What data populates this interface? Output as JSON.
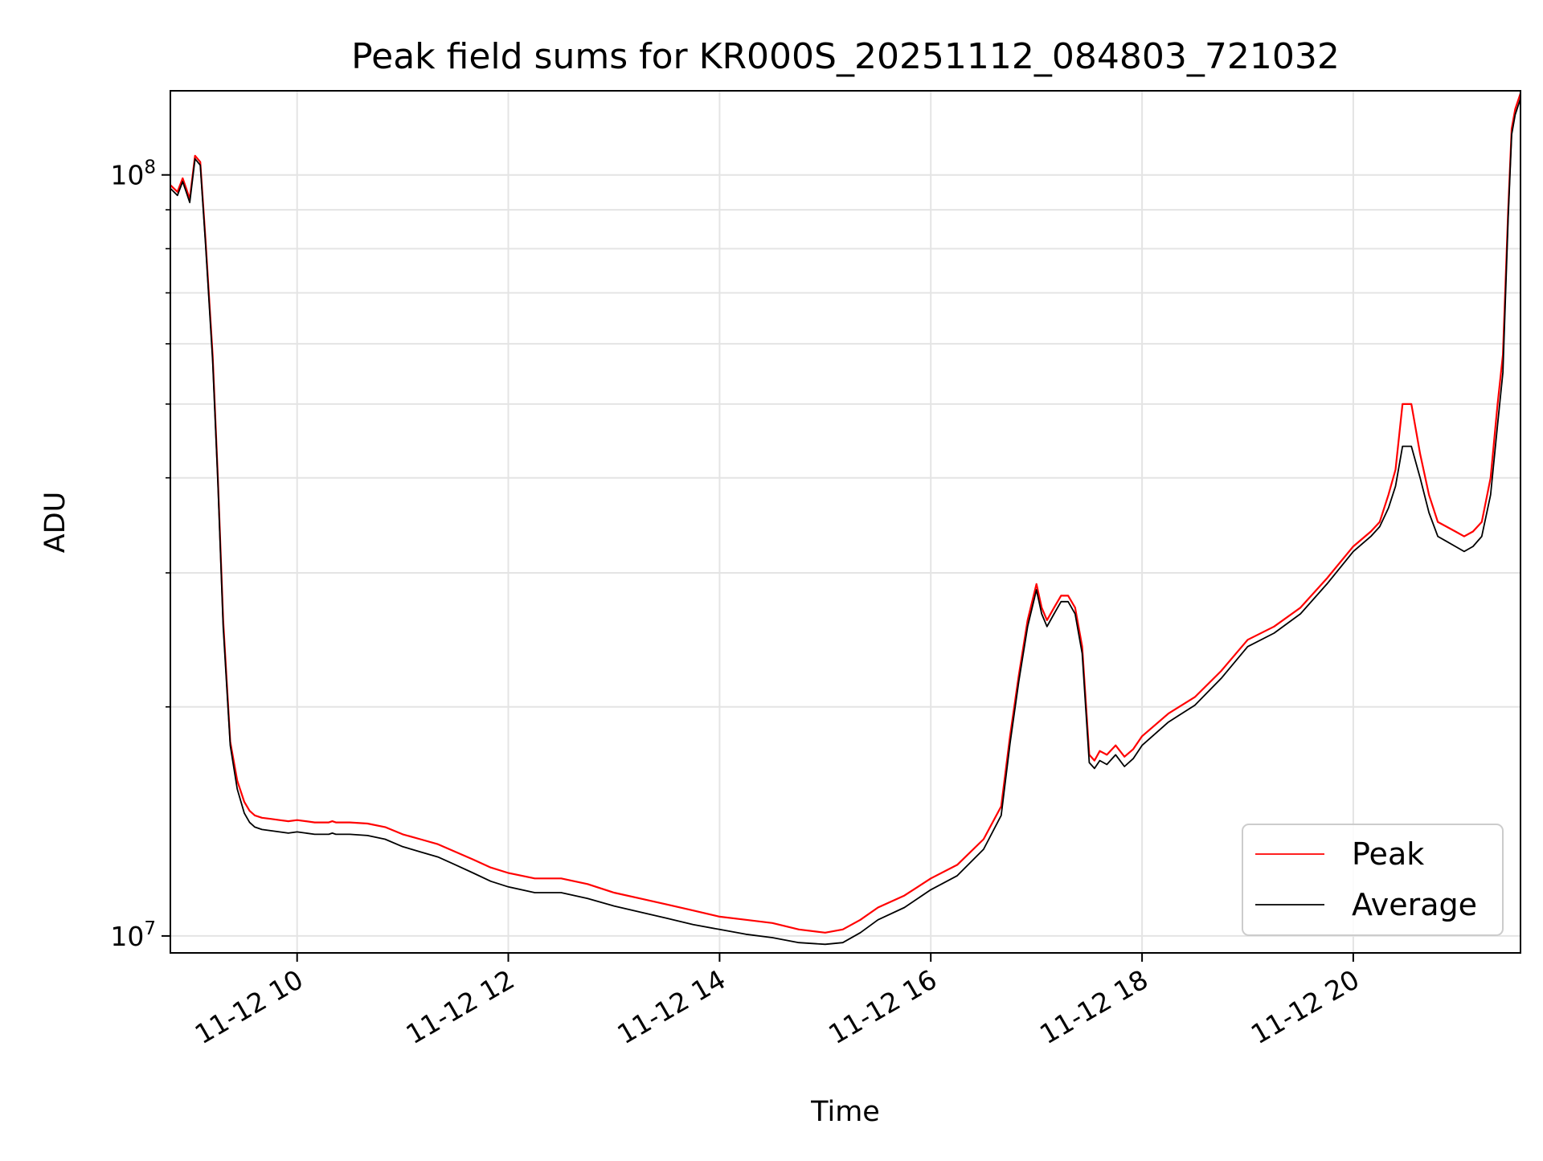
{
  "chart_data": {
    "type": "line",
    "title": "Peak field sums for KR000S_20251112_084803_721032",
    "xlabel": "Time",
    "ylabel": "ADU",
    "x_axis": {
      "type": "time",
      "range": [
        "2025-11-12 08:48",
        "2025-11-12 21:35"
      ],
      "ticks": [
        "2025-11-12 10:00",
        "2025-11-12 12:00",
        "2025-11-12 14:00",
        "2025-11-12 16:00",
        "2025-11-12 18:00",
        "2025-11-12 20:00"
      ],
      "tick_labels": [
        "11-12 10",
        "11-12 12",
        "11-12 14",
        "11-12 16",
        "11-12 18",
        "11-12 20"
      ],
      "tick_label_rotation_deg": 30
    },
    "y_axis": {
      "scale": "log",
      "range": [
        9500000,
        129000000
      ],
      "major_ticks": [
        10000000,
        100000000
      ],
      "major_tick_labels": [
        {
          "base": "10",
          "exp": "7"
        },
        {
          "base": "10",
          "exp": "8"
        }
      ],
      "minor_ticks": [
        20000000,
        30000000,
        40000000,
        50000000,
        60000000,
        70000000,
        80000000,
        90000000
      ]
    },
    "grid": true,
    "legend": {
      "placement": "lower-right",
      "entries": [
        "Peak",
        "Average"
      ]
    },
    "series": [
      {
        "name": "Peak",
        "color": "#ff0000",
        "x": [
          "08:48",
          "08:52",
          "08:55",
          "08:57",
          "08:59",
          "09:02",
          "09:05",
          "09:08",
          "09:12",
          "09:15",
          "09:18",
          "09:22",
          "09:26",
          "09:30",
          "09:33",
          "09:36",
          "09:40",
          "09:45",
          "09:50",
          "09:55",
          "10:00",
          "10:05",
          "10:10",
          "10:15",
          "10:18",
          "10:20",
          "10:22",
          "10:30",
          "10:40",
          "10:50",
          "11:00",
          "11:10",
          "11:20",
          "11:30",
          "11:40",
          "11:50",
          "12:00",
          "12:15",
          "12:30",
          "12:45",
          "13:00",
          "13:15",
          "13:30",
          "13:45",
          "14:00",
          "14:15",
          "14:30",
          "14:45",
          "15:00",
          "15:10",
          "15:20",
          "15:30",
          "15:45",
          "16:00",
          "16:15",
          "16:30",
          "16:40",
          "16:45",
          "16:50",
          "16:55",
          "17:00",
          "17:03",
          "17:06",
          "17:10",
          "17:14",
          "17:18",
          "17:22",
          "17:26",
          "17:30",
          "17:33",
          "17:36",
          "17:40",
          "17:45",
          "17:50",
          "17:55",
          "18:00",
          "18:15",
          "18:30",
          "18:45",
          "19:00",
          "19:15",
          "19:30",
          "19:45",
          "20:00",
          "20:10",
          "20:15",
          "20:20",
          "20:24",
          "20:28",
          "20:33",
          "20:38",
          "20:43",
          "20:48",
          "20:53",
          "20:58",
          "21:03",
          "21:08",
          "21:13",
          "21:18",
          "21:22",
          "21:25",
          "21:28",
          "21:30",
          "21:32",
          "21:35"
        ],
        "y": [
          97000000,
          95000000,
          99000000,
          96000000,
          93000000,
          106000000,
          104000000,
          82000000,
          58000000,
          40000000,
          26000000,
          18000000,
          16000000,
          15000000,
          14600000,
          14400000,
          14300000,
          14250000,
          14200000,
          14150000,
          14200000,
          14150000,
          14100000,
          14100000,
          14100000,
          14150000,
          14100000,
          14100000,
          14050000,
          13900000,
          13600000,
          13400000,
          13200000,
          12900000,
          12600000,
          12300000,
          12100000,
          11900000,
          11900000,
          11700000,
          11400000,
          11200000,
          11000000,
          10800000,
          10600000,
          10500000,
          10400000,
          10200000,
          10100000,
          10200000,
          10500000,
          10900000,
          11300000,
          11900000,
          12400000,
          13400000,
          14800000,
          18300000,
          22000000,
          26000000,
          29000000,
          27000000,
          26000000,
          27000000,
          28000000,
          28000000,
          27000000,
          24000000,
          17300000,
          17000000,
          17500000,
          17300000,
          17800000,
          17200000,
          17600000,
          18300000,
          19600000,
          20600000,
          22300000,
          24500000,
          25500000,
          27000000,
          29500000,
          32500000,
          34000000,
          35000000,
          38000000,
          41000000,
          50000000,
          50000000,
          43000000,
          38000000,
          35000000,
          34500000,
          34000000,
          33500000,
          34000000,
          35000000,
          40000000,
          50000000,
          58000000,
          90000000,
          115000000,
          122000000,
          128000000
        ]
      },
      {
        "name": "Average",
        "color": "#000000",
        "x": [
          "08:48",
          "08:52",
          "08:55",
          "08:57",
          "08:59",
          "09:02",
          "09:05",
          "09:08",
          "09:12",
          "09:15",
          "09:18",
          "09:22",
          "09:26",
          "09:30",
          "09:33",
          "09:36",
          "09:40",
          "09:45",
          "09:50",
          "09:55",
          "10:00",
          "10:05",
          "10:10",
          "10:15",
          "10:18",
          "10:20",
          "10:22",
          "10:30",
          "10:40",
          "10:50",
          "11:00",
          "11:10",
          "11:20",
          "11:30",
          "11:40",
          "11:50",
          "12:00",
          "12:15",
          "12:30",
          "12:45",
          "13:00",
          "13:15",
          "13:30",
          "13:45",
          "14:00",
          "14:15",
          "14:30",
          "14:45",
          "15:00",
          "15:10",
          "15:20",
          "15:30",
          "15:45",
          "16:00",
          "16:15",
          "16:30",
          "16:40",
          "16:45",
          "16:50",
          "16:55",
          "17:00",
          "17:03",
          "17:06",
          "17:10",
          "17:14",
          "17:18",
          "17:22",
          "17:26",
          "17:30",
          "17:33",
          "17:36",
          "17:40",
          "17:45",
          "17:50",
          "17:55",
          "18:00",
          "18:15",
          "18:30",
          "18:45",
          "19:00",
          "19:15",
          "19:30",
          "19:45",
          "20:00",
          "20:10",
          "20:15",
          "20:20",
          "20:24",
          "20:28",
          "20:33",
          "20:38",
          "20:43",
          "20:48",
          "20:53",
          "20:58",
          "21:03",
          "21:08",
          "21:13",
          "21:18",
          "21:22",
          "21:25",
          "21:28",
          "21:30",
          "21:32",
          "21:35"
        ],
        "y": [
          96000000,
          94000000,
          98000000,
          95000000,
          92000000,
          105000000,
          103000000,
          81000000,
          57000000,
          39500000,
          25500000,
          17800000,
          15600000,
          14500000,
          14100000,
          13900000,
          13800000,
          13750000,
          13700000,
          13650000,
          13700000,
          13650000,
          13600000,
          13600000,
          13600000,
          13650000,
          13600000,
          13600000,
          13550000,
          13400000,
          13100000,
          12900000,
          12700000,
          12400000,
          12100000,
          11800000,
          11600000,
          11400000,
          11400000,
          11200000,
          10950000,
          10750000,
          10550000,
          10350000,
          10200000,
          10050000,
          9950000,
          9800000,
          9750000,
          9800000,
          10100000,
          10500000,
          10900000,
          11500000,
          12000000,
          13000000,
          14400000,
          17900000,
          21600000,
          25500000,
          28500000,
          26500000,
          25500000,
          26500000,
          27500000,
          27500000,
          26500000,
          23500000,
          16900000,
          16600000,
          17000000,
          16800000,
          17300000,
          16700000,
          17100000,
          17800000,
          19100000,
          20100000,
          21800000,
          24000000,
          25000000,
          26500000,
          29000000,
          32000000,
          33500000,
          34500000,
          36500000,
          39000000,
          44000000,
          44000000,
          40000000,
          36000000,
          33500000,
          33000000,
          32500000,
          32000000,
          32500000,
          33500000,
          38000000,
          47000000,
          55000000,
          88000000,
          113000000,
          120000000,
          126000000
        ]
      }
    ]
  }
}
